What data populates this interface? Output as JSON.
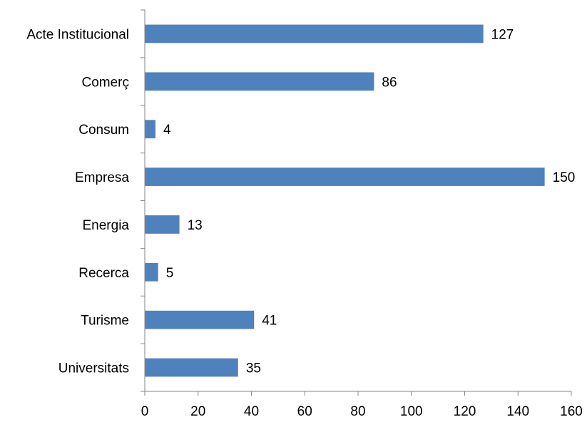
{
  "chart_data": {
    "type": "bar",
    "orientation": "horizontal",
    "title": "",
    "xlabel": "",
    "ylabel": "",
    "categories": [
      "Acte Institucional",
      "Comerç",
      "Consum",
      "Empresa",
      "Energia",
      "Recerca",
      "Turisme",
      "Universitats"
    ],
    "values": [
      127,
      86,
      4,
      150,
      13,
      5,
      41,
      35
    ],
    "data_labels": [
      "127",
      "86",
      "4",
      "150",
      "13",
      "5",
      "41",
      "35"
    ],
    "xlim": [
      0,
      160
    ],
    "xticks": [
      0,
      20,
      40,
      60,
      80,
      100,
      120,
      140,
      160
    ],
    "xtick_labels": [
      "0",
      "20",
      "40",
      "60",
      "80",
      "100",
      "120",
      "140",
      "160"
    ],
    "grid": false,
    "legend": "none",
    "bar_color": "#4F81BD"
  }
}
